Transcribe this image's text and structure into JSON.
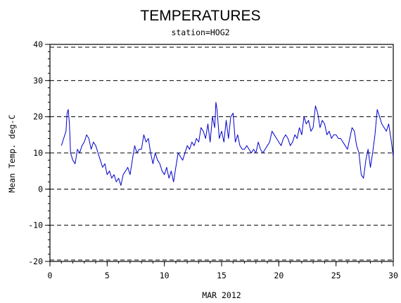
{
  "chart_data": {
    "type": "line",
    "title": "TEMPERATURES",
    "subtitle": "station=HOG2",
    "xlabel": "MAR 2012",
    "ylabel": "Mean Temp. deg-C",
    "xlim": [
      0,
      30
    ],
    "ylim": [
      -20,
      40
    ],
    "x_ticks": [
      0,
      5,
      10,
      15,
      20,
      25,
      30
    ],
    "x_tick_labels": [
      "0",
      "5",
      "10",
      "15",
      "20",
      "25",
      "30"
    ],
    "y_ticks": [
      -20,
      -10,
      0,
      10,
      20,
      30,
      40
    ],
    "y_tick_labels": [
      "-20",
      "-10",
      "0",
      "10",
      "20",
      "30",
      "40"
    ],
    "grid": "horizontal dashed at y ticks",
    "line_color": "#0000cc",
    "series": [
      {
        "x": [
          1.0,
          1.2,
          1.4,
          1.5,
          1.6,
          1.7,
          1.8,
          1.9,
          2.0,
          2.2,
          2.4,
          2.6,
          2.8,
          3.0,
          3.2,
          3.4,
          3.6,
          3.8,
          4.0,
          4.2,
          4.4,
          4.6,
          4.8,
          5.0,
          5.2,
          5.4,
          5.6,
          5.8,
          6.0,
          6.2,
          6.4,
          6.6,
          6.8,
          7.0,
          7.2,
          7.4,
          7.6,
          7.8,
          8.0,
          8.2,
          8.4,
          8.6,
          8.8,
          9.0,
          9.2,
          9.4,
          9.6,
          9.8,
          10.0,
          10.2,
          10.4,
          10.6,
          10.8,
          11.0,
          11.2,
          11.4,
          11.6,
          11.8,
          12.0,
          12.2,
          12.4,
          12.6,
          12.8,
          13.0,
          13.2,
          13.4,
          13.6,
          13.8,
          14.0,
          14.2,
          14.4,
          14.5,
          14.6,
          14.8,
          15.0,
          15.2,
          15.4,
          15.6,
          15.8,
          16.0,
          16.2,
          16.4,
          16.6,
          16.8,
          17.0,
          17.2,
          17.4,
          17.6,
          17.8,
          18.0,
          18.2,
          18.4,
          18.6,
          18.8,
          19.0,
          19.2,
          19.4,
          19.6,
          19.8,
          20.0,
          20.2,
          20.4,
          20.6,
          20.8,
          21.0,
          21.2,
          21.4,
          21.6,
          21.8,
          22.0,
          22.2,
          22.4,
          22.6,
          22.8,
          23.0,
          23.2,
          23.4,
          23.6,
          23.8,
          24.0,
          24.2,
          24.4,
          24.6,
          24.8,
          25.0,
          25.2,
          25.4,
          25.6,
          25.8,
          26.0,
          26.2,
          26.4,
          26.6,
          26.8,
          27.0,
          27.2,
          27.4,
          27.6,
          27.8,
          28.0,
          28.2,
          28.4,
          28.6,
          28.8,
          29.0,
          29.2,
          29.4,
          29.6,
          29.8,
          30.0
        ],
        "y": [
          12,
          14,
          16,
          21,
          22,
          18,
          10,
          9,
          8,
          7,
          11,
          10,
          12,
          13,
          15,
          14,
          11,
          13,
          12,
          10,
          8,
          6,
          7,
          4,
          5,
          3,
          4,
          2,
          3,
          1,
          4,
          5,
          6,
          4,
          8,
          12,
          10,
          11,
          11,
          15,
          13,
          14,
          10,
          7,
          10,
          8,
          7,
          5,
          4,
          6,
          3,
          5,
          2,
          6,
          10,
          9,
          8,
          10,
          12,
          11,
          13,
          12,
          14,
          13,
          17,
          16,
          14,
          18,
          13,
          20,
          17,
          24,
          22,
          14,
          16,
          13,
          19,
          14,
          20,
          21,
          13,
          15,
          12,
          11,
          11,
          12,
          11,
          10,
          11,
          10,
          13,
          11,
          10,
          11,
          12,
          13,
          16,
          15,
          14,
          13,
          12,
          14,
          15,
          14,
          12,
          13,
          15,
          14,
          17,
          15,
          20,
          18,
          19,
          16,
          17,
          23,
          21,
          17,
          19,
          18,
          15,
          16,
          14,
          15,
          15,
          14,
          14,
          13,
          12,
          11,
          14,
          17,
          16,
          12,
          10,
          4,
          3,
          8,
          11,
          6,
          10,
          15,
          22,
          20,
          18,
          17,
          16,
          18,
          14,
          9
        ]
      }
    ]
  }
}
